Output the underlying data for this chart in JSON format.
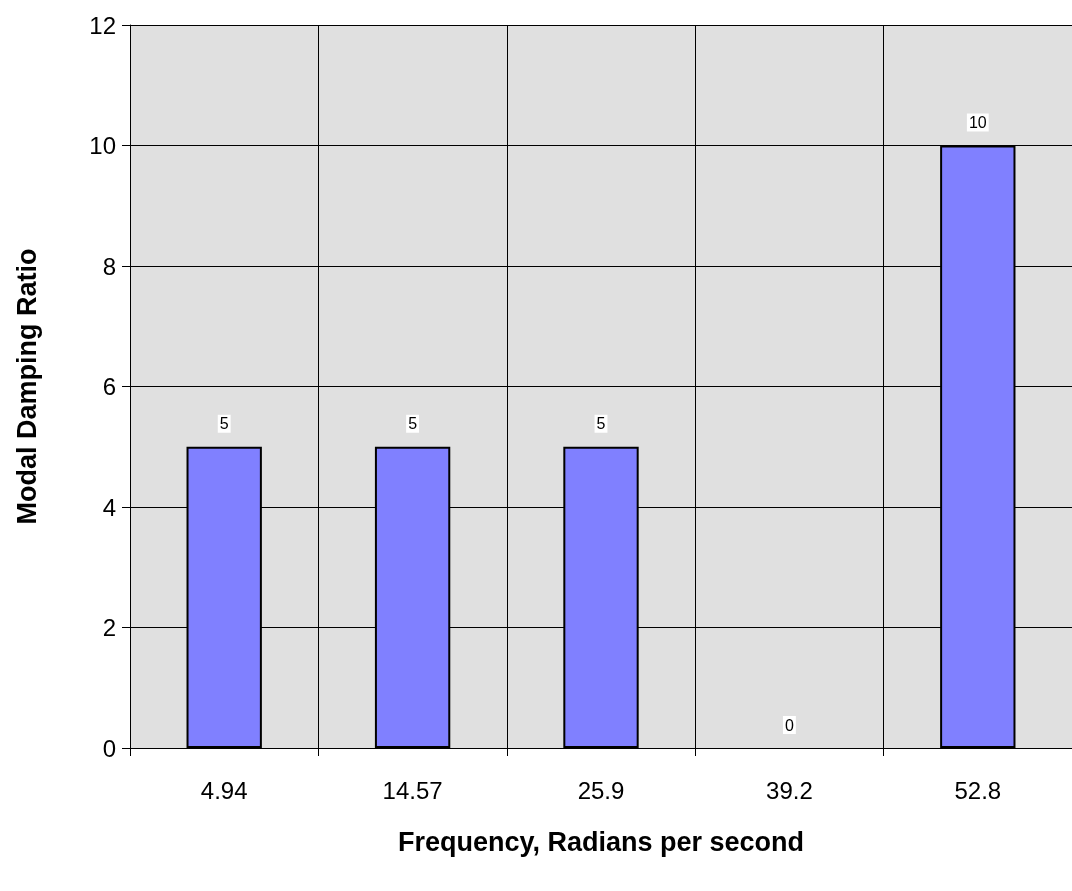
{
  "chart_data": {
    "type": "bar",
    "xlabel": "Frequency, Radians per second",
    "ylabel": "Modal Damping Ratio",
    "categories": [
      "4.94",
      "14.57",
      "25.9",
      "39.2",
      "52.8"
    ],
    "values": [
      5,
      5,
      5,
      0,
      10
    ],
    "color": "#8080ff",
    "ylim": [
      0,
      12
    ],
    "yticks": [
      0,
      2,
      4,
      6,
      8,
      10,
      12
    ],
    "grid": true,
    "data_labels": true
  }
}
